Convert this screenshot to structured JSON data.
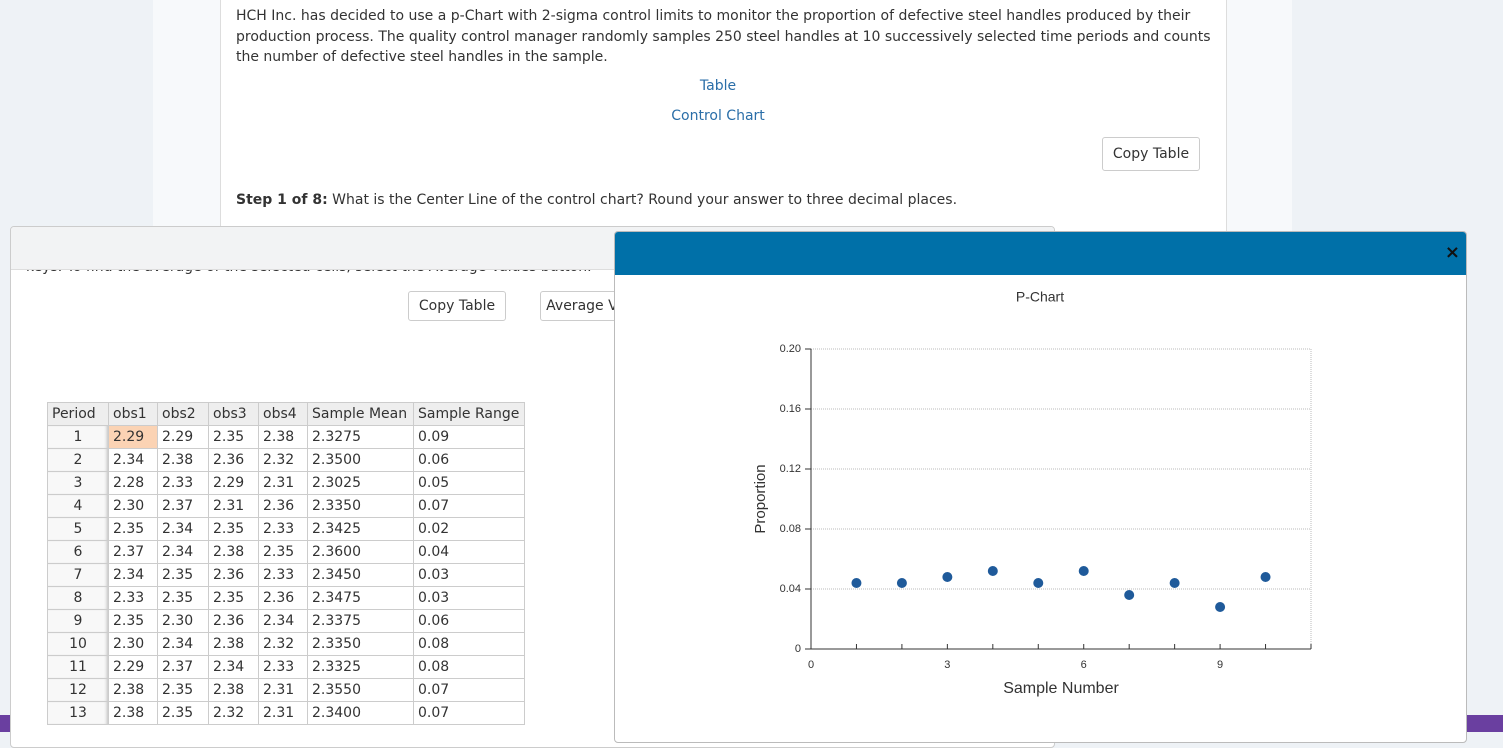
{
  "intro": "HCH Inc. has decided to use a p-Chart with 2-sigma control limits to monitor the proportion of defective steel handles produced by their production process. The quality control manager randomly samples 250 steel handles at 10 successively selected time periods and counts the number of defective steel handles in the sample.",
  "links": [
    "Table",
    "Control Chart"
  ],
  "copy_button": "Copy Table",
  "step": {
    "label": "Step 1 of 8:",
    "question": "What is the Center Line of the control chart? Round your answer to three decimal places."
  },
  "dialog": {
    "instructions": "keys. To find the average of the selected cells, select the Average Values button.",
    "buttons": [
      "Copy Table",
      "Average Values"
    ]
  },
  "table": {
    "headers": [
      "Period",
      "obs1",
      "obs2",
      "obs3",
      "obs4",
      "Sample Mean",
      "Sample Range"
    ],
    "rows": [
      [
        "1",
        "2.29",
        "2.29",
        "2.35",
        "2.38",
        "2.3275",
        "0.09"
      ],
      [
        "2",
        "2.34",
        "2.38",
        "2.36",
        "2.32",
        "2.3500",
        "0.06"
      ],
      [
        "3",
        "2.28",
        "2.33",
        "2.29",
        "2.31",
        "2.3025",
        "0.05"
      ],
      [
        "4",
        "2.30",
        "2.37",
        "2.31",
        "2.36",
        "2.3350",
        "0.07"
      ],
      [
        "5",
        "2.35",
        "2.34",
        "2.35",
        "2.33",
        "2.3425",
        "0.02"
      ],
      [
        "6",
        "2.37",
        "2.34",
        "2.38",
        "2.35",
        "2.3600",
        "0.04"
      ],
      [
        "7",
        "2.34",
        "2.35",
        "2.36",
        "2.33",
        "2.3450",
        "0.03"
      ],
      [
        "8",
        "2.33",
        "2.35",
        "2.35",
        "2.36",
        "2.3475",
        "0.03"
      ],
      [
        "9",
        "2.35",
        "2.30",
        "2.36",
        "2.34",
        "2.3375",
        "0.06"
      ],
      [
        "10",
        "2.30",
        "2.34",
        "2.38",
        "2.32",
        "2.3350",
        "0.08"
      ],
      [
        "11",
        "2.29",
        "2.37",
        "2.34",
        "2.33",
        "2.3325",
        "0.08"
      ],
      [
        "12",
        "2.38",
        "2.35",
        "2.38",
        "2.31",
        "2.3550",
        "0.07"
      ],
      [
        "13",
        "2.38",
        "2.35",
        "2.32",
        "2.31",
        "2.3400",
        "0.07"
      ]
    ]
  },
  "modal": {
    "close": "×"
  },
  "chart_data": {
    "type": "scatter",
    "title": "P-Chart",
    "x_label": "Sample Number",
    "y_label": "Proportion",
    "x": [
      1,
      2,
      3,
      4,
      5,
      6,
      7,
      8,
      9,
      10
    ],
    "values": [
      0.044,
      0.044,
      0.048,
      0.052,
      0.044,
      0.052,
      0.036,
      0.044,
      0.028,
      0.048
    ],
    "color": "#1f5a9a",
    "xlim": [
      0,
      11
    ],
    "xticks": [
      0,
      3,
      6,
      9
    ],
    "xminorticks": [
      1,
      2,
      4,
      5,
      7,
      8,
      10,
      11
    ],
    "ylim": [
      0,
      0.2
    ],
    "yticks": [
      0,
      0.04,
      0.08,
      0.12,
      0.16,
      {
        "value": 0.2,
        "label": "0.20"
      }
    ],
    "grid": true
  }
}
